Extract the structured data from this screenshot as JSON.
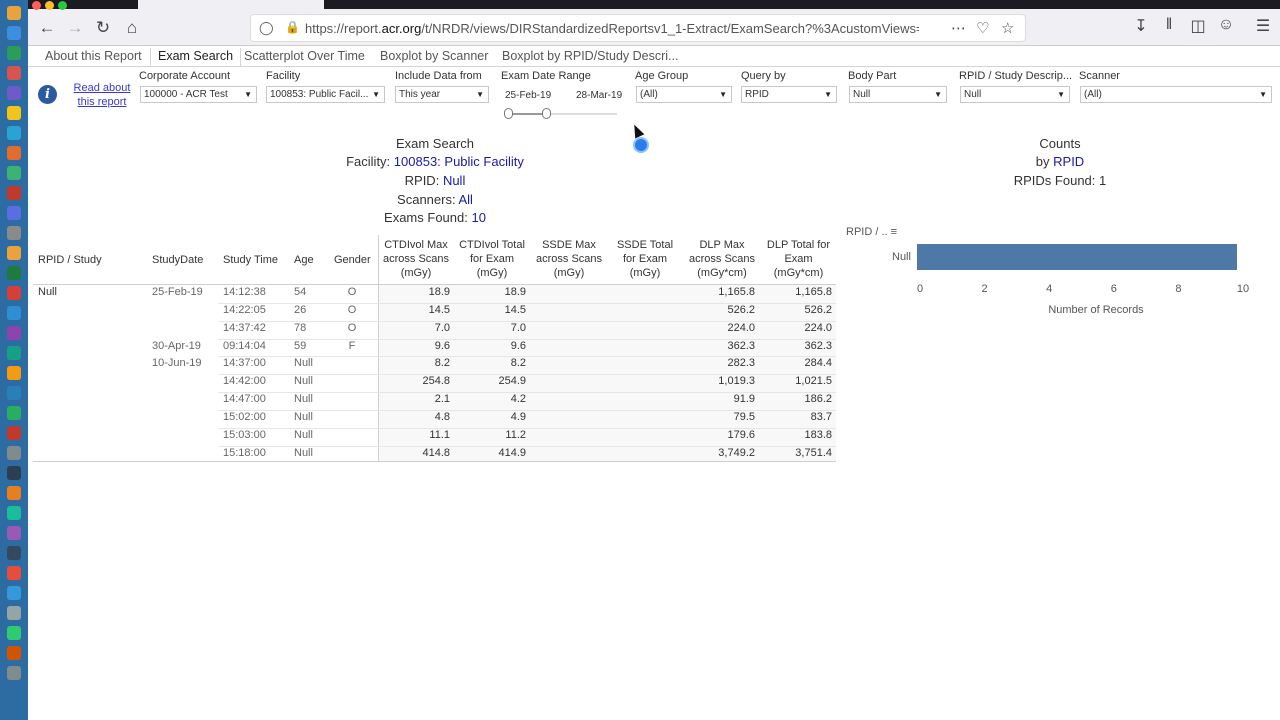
{
  "browser": {
    "url_prefix": "https://report.",
    "url_domain": "acr.org",
    "url_rest": "/t/NRDR/views/DIRStandardizedReportsv1_1-Extract/ExamSearch?%3AcustomViews=n&"
  },
  "report_tabs": [
    "About this Report",
    "Exam Search",
    "Scatterplot Over Time",
    "Boxplot by Scanner",
    "Boxplot by RPID/Study Descri..."
  ],
  "filters": {
    "read_about_line1": "Read about",
    "read_about_line2": "this report",
    "corporate_account": {
      "label": "Corporate Account",
      "value": "100000 - ACR Test"
    },
    "facility": {
      "label": "Facility",
      "value": "100853: Public Facil..."
    },
    "include_data_from": {
      "label": "Include Data from",
      "value": "This year"
    },
    "exam_date_range": {
      "label": "Exam Date Range",
      "start": "25-Feb-19",
      "end": "28-Mar-19"
    },
    "age_group": {
      "label": "Age Group",
      "value": "(All)"
    },
    "query_by": {
      "label": "Query by",
      "value": "RPID"
    },
    "body_part": {
      "label": "Body Part",
      "value": "Null"
    },
    "rpid_study": {
      "label": "RPID / Study Descrip...",
      "value": "Null"
    },
    "scanner": {
      "label": "Scanner",
      "value": "(All)"
    }
  },
  "summary": {
    "title": "Exam Search",
    "facility_label": "Facility:",
    "facility_value": "100853: Public Facility",
    "rpid_label": "RPID:",
    "rpid_value": "Null",
    "scanners_label": "Scanners:",
    "scanners_value": "All",
    "exams_label": "Exams Found:",
    "exams_value": "10"
  },
  "table": {
    "headers": {
      "rpid": "RPID / Study",
      "date": "StudyDate",
      "time": "Study Time",
      "age": "Age",
      "gender": "Gender",
      "ctdi_max": [
        "CTDIvol Max",
        "across Scans",
        "(mGy)"
      ],
      "ctdi_total": [
        "CTDIvol Total",
        "for Exam",
        "(mGy)"
      ],
      "ssde_max": [
        "SSDE Max",
        "across Scans",
        "(mGy)"
      ],
      "ssde_total": [
        "SSDE Total",
        "for Exam",
        "(mGy)"
      ],
      "dlp_max": [
        "DLP Max",
        "across Scans",
        "(mGy*cm)"
      ],
      "dlp_total": [
        "DLP Total for",
        "Exam",
        "(mGy*cm)"
      ]
    },
    "group": "Null",
    "dates": [
      "25-Feb-19",
      "30-Apr-19",
      "10-Jun-19"
    ],
    "rows": [
      {
        "time": "14:12:38",
        "age": "54",
        "gender": "O",
        "ctdi_max": "18.9",
        "ctdi_total": "18.9",
        "dlp_max": "1,165.8",
        "dlp_total": "1,165.8"
      },
      {
        "time": "14:22:05",
        "age": "26",
        "gender": "O",
        "ctdi_max": "14.5",
        "ctdi_total": "14.5",
        "dlp_max": "526.2",
        "dlp_total": "526.2"
      },
      {
        "time": "14:37:42",
        "age": "78",
        "gender": "O",
        "ctdi_max": "7.0",
        "ctdi_total": "7.0",
        "dlp_max": "224.0",
        "dlp_total": "224.0"
      },
      {
        "time": "09:14:04",
        "age": "59",
        "gender": "F",
        "ctdi_max": "9.6",
        "ctdi_total": "9.6",
        "dlp_max": "362.3",
        "dlp_total": "362.3"
      },
      {
        "time": "14:37:00",
        "age": "Null",
        "gender": "",
        "ctdi_max": "8.2",
        "ctdi_total": "8.2",
        "dlp_max": "282.3",
        "dlp_total": "284.4"
      },
      {
        "time": "14:42:00",
        "age": "Null",
        "gender": "",
        "ctdi_max": "254.8",
        "ctdi_total": "254.9",
        "dlp_max": "1,019.3",
        "dlp_total": "1,021.5"
      },
      {
        "time": "14:47:00",
        "age": "Null",
        "gender": "",
        "ctdi_max": "2.1",
        "ctdi_total": "4.2",
        "dlp_max": "91.9",
        "dlp_total": "186.2"
      },
      {
        "time": "15:02:00",
        "age": "Null",
        "gender": "",
        "ctdi_max": "4.8",
        "ctdi_total": "4.9",
        "dlp_max": "79.5",
        "dlp_total": "83.7"
      },
      {
        "time": "15:03:00",
        "age": "Null",
        "gender": "",
        "ctdi_max": "11.1",
        "ctdi_total": "11.2",
        "dlp_max": "179.6",
        "dlp_total": "183.8"
      },
      {
        "time": "15:18:00",
        "age": "Null",
        "gender": "",
        "ctdi_max": "414.8",
        "ctdi_total": "414.9",
        "dlp_max": "3,749.2",
        "dlp_total": "3,751.4"
      }
    ]
  },
  "counts": {
    "title": "Counts",
    "by_label": "by",
    "by_value": "RPID",
    "found": "RPIDs Found: 1"
  },
  "chart_data": {
    "type": "bar",
    "orientation": "horizontal",
    "categories": [
      "Null"
    ],
    "values": [
      10
    ],
    "ylabel": "RPID / ..",
    "xlabel": "Number of Records",
    "xticks": [
      "0",
      "2",
      "4",
      "6",
      "8",
      "10"
    ],
    "xlim": [
      0,
      10
    ],
    "bar_color": "#4e79a7"
  }
}
